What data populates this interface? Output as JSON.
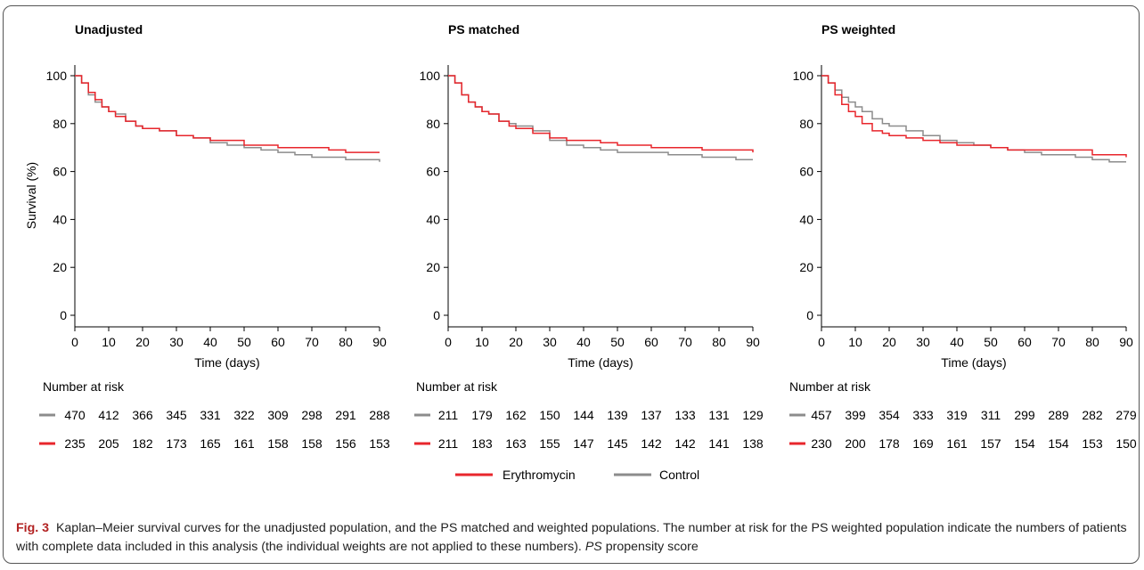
{
  "chart_data": [
    {
      "type": "line",
      "title": "Unadjusted",
      "xlabel": "Time (days)",
      "ylabel": "Survival (%)",
      "xlim": [
        0,
        90
      ],
      "ylim": [
        0,
        100
      ],
      "xticks": [
        "0",
        "10",
        "20",
        "30",
        "40",
        "50",
        "60",
        "70",
        "80",
        "90"
      ],
      "yticks": [
        "0",
        "20",
        "40",
        "60",
        "80",
        "100"
      ],
      "series": [
        {
          "name": "Erythromycin",
          "color": "#e8262c",
          "x": [
            0,
            2,
            4,
            6,
            8,
            10,
            12,
            15,
            18,
            20,
            25,
            30,
            35,
            40,
            45,
            50,
            55,
            60,
            65,
            70,
            75,
            80,
            85,
            90
          ],
          "y": [
            100,
            97,
            93,
            90,
            87,
            85,
            83,
            81,
            79,
            78,
            77,
            75,
            74,
            73,
            73,
            71,
            71,
            70,
            70,
            70,
            69,
            68,
            68,
            68
          ]
        },
        {
          "name": "Control",
          "color": "#8c8c8c",
          "x": [
            0,
            2,
            4,
            6,
            8,
            10,
            12,
            15,
            18,
            20,
            25,
            30,
            35,
            40,
            45,
            50,
            55,
            60,
            65,
            70,
            75,
            80,
            85,
            90
          ],
          "y": [
            100,
            97,
            92,
            89,
            87,
            85,
            84,
            81,
            79,
            78,
            77,
            75,
            74,
            72,
            71,
            70,
            69,
            68,
            67,
            66,
            66,
            65,
            65,
            64
          ]
        }
      ],
      "risk_table": {
        "label": "Number at risk",
        "control": [
          "470",
          "412",
          "366",
          "345",
          "331",
          "322",
          "309",
          "298",
          "291",
          "288"
        ],
        "erythromycin": [
          "235",
          "205",
          "182",
          "173",
          "165",
          "161",
          "158",
          "158",
          "156",
          "153"
        ]
      }
    },
    {
      "type": "line",
      "title": "PS matched",
      "xlabel": "Time (days)",
      "ylabel": "",
      "xlim": [
        0,
        90
      ],
      "ylim": [
        0,
        100
      ],
      "xticks": [
        "0",
        "10",
        "20",
        "30",
        "40",
        "50",
        "60",
        "70",
        "80",
        "90"
      ],
      "yticks": [
        "0",
        "20",
        "40",
        "60",
        "80",
        "100"
      ],
      "series": [
        {
          "name": "Erythromycin",
          "color": "#e8262c",
          "x": [
            0,
            2,
            4,
            6,
            8,
            10,
            12,
            15,
            18,
            20,
            25,
            30,
            35,
            40,
            45,
            50,
            55,
            60,
            65,
            70,
            75,
            80,
            85,
            90
          ],
          "y": [
            100,
            97,
            92,
            89,
            87,
            85,
            84,
            81,
            79,
            78,
            76,
            74,
            73,
            73,
            72,
            71,
            71,
            70,
            70,
            70,
            69,
            69,
            69,
            68
          ]
        },
        {
          "name": "Control",
          "color": "#8c8c8c",
          "x": [
            0,
            2,
            4,
            6,
            8,
            10,
            12,
            15,
            18,
            20,
            25,
            30,
            35,
            40,
            45,
            50,
            55,
            60,
            65,
            70,
            75,
            80,
            85,
            90
          ],
          "y": [
            100,
            97,
            92,
            89,
            87,
            85,
            84,
            81,
            80,
            79,
            77,
            73,
            71,
            70,
            69,
            68,
            68,
            68,
            67,
            67,
            66,
            66,
            65,
            65
          ]
        }
      ],
      "risk_table": {
        "label": "Number at risk",
        "control": [
          "211",
          "179",
          "162",
          "150",
          "144",
          "139",
          "137",
          "133",
          "131",
          "129"
        ],
        "erythromycin": [
          "211",
          "183",
          "163",
          "155",
          "147",
          "145",
          "142",
          "142",
          "141",
          "138"
        ]
      }
    },
    {
      "type": "line",
      "title": "PS weighted",
      "xlabel": "Time (days)",
      "ylabel": "",
      "xlim": [
        0,
        90
      ],
      "ylim": [
        0,
        100
      ],
      "xticks": [
        "0",
        "10",
        "20",
        "30",
        "40",
        "50",
        "60",
        "70",
        "80",
        "90"
      ],
      "yticks": [
        "0",
        "20",
        "40",
        "60",
        "80",
        "100"
      ],
      "series": [
        {
          "name": "Erythromycin",
          "color": "#e8262c",
          "x": [
            0,
            2,
            4,
            6,
            8,
            10,
            12,
            15,
            18,
            20,
            25,
            30,
            35,
            40,
            45,
            50,
            55,
            60,
            65,
            70,
            75,
            80,
            85,
            90
          ],
          "y": [
            100,
            97,
            92,
            88,
            85,
            83,
            80,
            77,
            76,
            75,
            74,
            73,
            72,
            71,
            71,
            70,
            69,
            69,
            69,
            69,
            69,
            67,
            67,
            66
          ]
        },
        {
          "name": "Control",
          "color": "#8c8c8c",
          "x": [
            0,
            2,
            4,
            6,
            8,
            10,
            12,
            15,
            18,
            20,
            25,
            30,
            35,
            40,
            45,
            50,
            55,
            60,
            65,
            70,
            75,
            80,
            85,
            90
          ],
          "y": [
            100,
            97,
            94,
            91,
            89,
            87,
            85,
            82,
            80,
            79,
            77,
            75,
            73,
            72,
            71,
            70,
            69,
            68,
            67,
            67,
            66,
            65,
            64,
            64
          ]
        }
      ],
      "risk_table": {
        "label": "Number at risk",
        "control": [
          "457",
          "399",
          "354",
          "333",
          "319",
          "311",
          "299",
          "289",
          "282",
          "279"
        ],
        "erythromycin": [
          "230",
          "200",
          "178",
          "169",
          "161",
          "157",
          "154",
          "154",
          "153",
          "150"
        ]
      }
    }
  ],
  "legend": {
    "items": [
      {
        "label": "Erythromycin",
        "color": "#e8262c"
      },
      {
        "label": "Control",
        "color": "#8c8c8c"
      }
    ]
  },
  "caption": {
    "fig_label": "Fig. 3",
    "text": "Kaplan–Meier survival curves for the unadjusted population, and the PS matched and weighted populations. The number at risk for the PS weighted population indicate the numbers of patients with complete data included in this analysis (the individual weights are not applied to these numbers).",
    "abbr_term": "PS",
    "abbr_def": "propensity score"
  }
}
